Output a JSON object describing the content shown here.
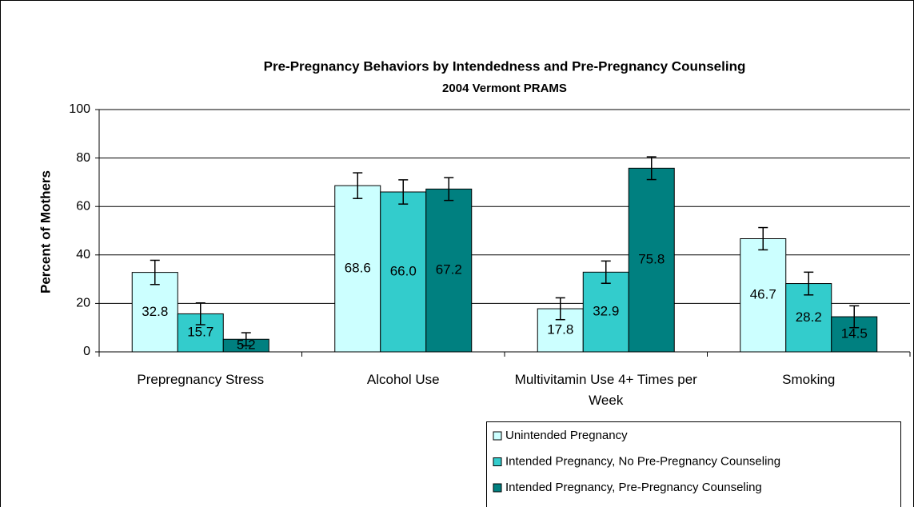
{
  "chart_data": {
    "type": "bar",
    "title": "Pre-Pregnancy Behaviors by Intendedness and Pre-Pregnancy Counseling",
    "subtitle": "2004 Vermont PRAMS",
    "y_label": "Percent of Mothers",
    "categories": [
      "Prepregnancy Stress",
      "Alcohol Use",
      "Multivitamin Use 4+ Times per Week",
      "Smoking"
    ],
    "series": [
      {
        "name": "Unintended Pregnancy",
        "color": "#ccffff",
        "values": [
          32.8,
          68.6,
          17.8,
          46.7
        ],
        "value_labels": [
          "32.8",
          "68.6",
          "17.8",
          "46.7"
        ],
        "errors": [
          5,
          5.3,
          4.5,
          4.6
        ]
      },
      {
        "name": "Intended Pregnancy, No Pre-Pregnancy Counseling",
        "color": "#33cccc",
        "values": [
          15.7,
          66,
          32.9,
          28.2
        ],
        "value_labels": [
          "15.7",
          "66.0",
          "32.9",
          "28.2"
        ],
        "errors": [
          4.5,
          5,
          4.6,
          4.7
        ]
      },
      {
        "name": "Intended Pregnancy, Pre-Pregnancy Counseling",
        "color": "#008080",
        "values": [
          5.2,
          67.2,
          75.8,
          14.5
        ],
        "value_labels": [
          "5.2",
          "67.2",
          "75.8",
          "14.5"
        ],
        "errors": [
          2.7,
          4.7,
          4.7,
          4.5
        ]
      }
    ],
    "ylim": [
      0,
      100
    ],
    "yticks": [
      0,
      20,
      40,
      60,
      80,
      100
    ],
    "grid": true,
    "legend": "bottom-right"
  }
}
